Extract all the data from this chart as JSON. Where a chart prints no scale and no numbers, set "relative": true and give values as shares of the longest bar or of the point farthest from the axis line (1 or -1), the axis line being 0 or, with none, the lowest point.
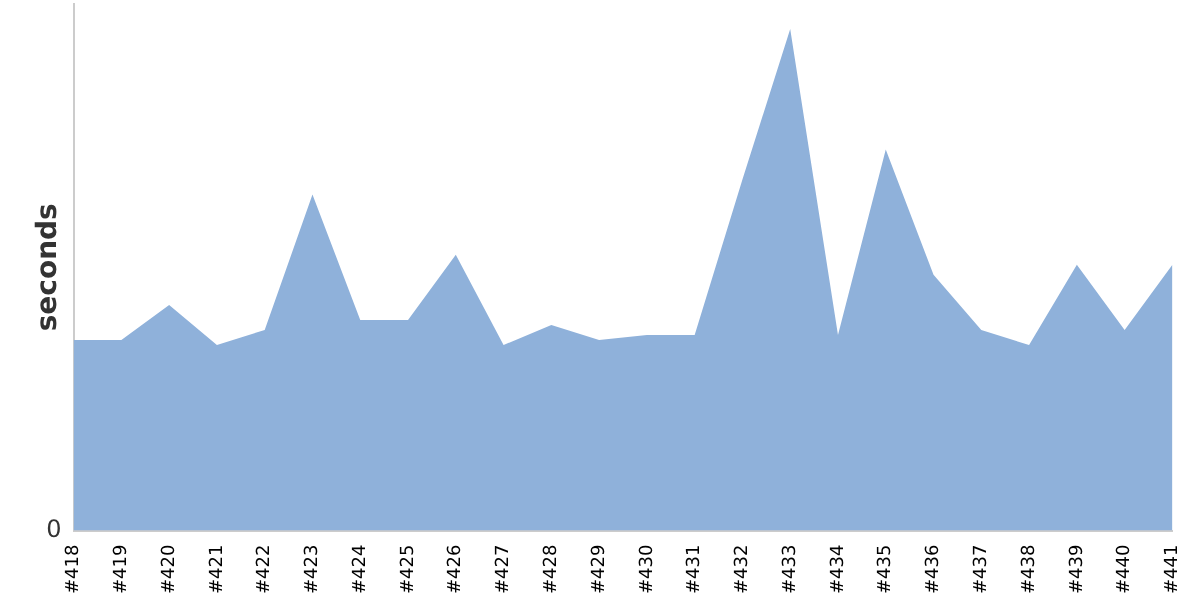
{
  "chart_data": {
    "type": "area",
    "ylabel": "seconds",
    "relative": true,
    "annotations": [
      "0"
    ],
    "grid": false,
    "legend": false,
    "categories": [
      "#418",
      "#419",
      "#420",
      "#421",
      "#422",
      "#423",
      "#424",
      "#425",
      "#426",
      "#427",
      "#428",
      "#429",
      "#430",
      "#431",
      "#432",
      "#433",
      "#434",
      "#435",
      "#436",
      "#437",
      "#438",
      "#439",
      "#440",
      "#441"
    ],
    "series": [
      {
        "color": "#8fb1da",
        "values": [
          0.38,
          0.38,
          0.45,
          0.37,
          0.4,
          0.67,
          0.42,
          0.42,
          0.55,
          0.37,
          0.41,
          0.38,
          0.39,
          0.39,
          0.7,
          1,
          0.39,
          0.76,
          0.51,
          0.4,
          0.37,
          0.53,
          0.4,
          0.53
        ]
      }
    ]
  }
}
